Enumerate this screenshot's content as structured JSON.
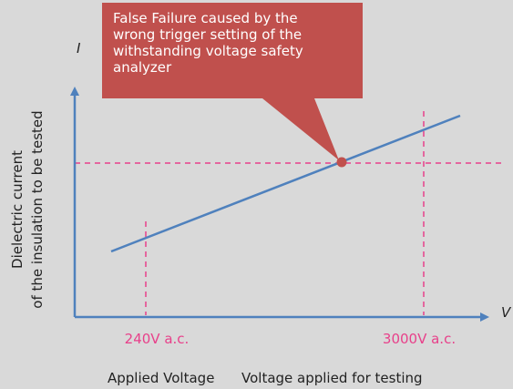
{
  "callout": {
    "lines": [
      "False Failure caused by the",
      "wrong trigger setting of the",
      "withstanding voltage safety",
      "analyzer"
    ]
  },
  "y_axis": {
    "symbol": "I",
    "label_lines": [
      "Dielectric current",
      "of the insulation to be tested"
    ]
  },
  "x_axis": {
    "symbol": "V",
    "markers": [
      "240V a.c.",
      "3000V a.c."
    ],
    "captions": [
      "Applied Voltage",
      "Voltage applied for testing"
    ]
  }
}
